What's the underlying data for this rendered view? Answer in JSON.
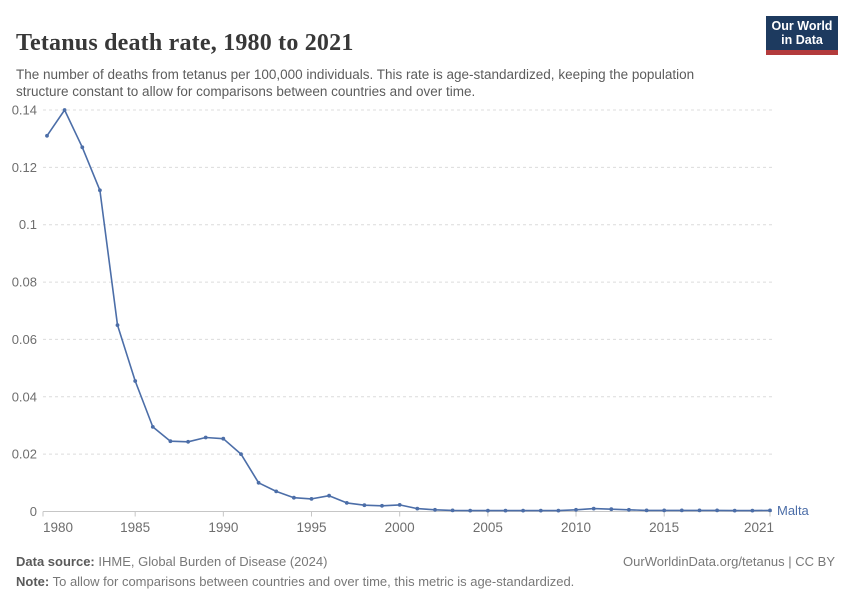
{
  "header": {
    "title": "Tetanus death rate, 1980 to 2021",
    "subtitle": "The number of deaths from tetanus per 100,000 individuals. This rate is age-standardized, keeping the population structure constant to allow for comparisons between countries and over time.",
    "logo": {
      "line1": "Our World",
      "line2": "in Data"
    }
  },
  "chart_data": {
    "type": "line",
    "title": "Tetanus death rate, 1980 to 2021",
    "xlabel": "",
    "ylabel": "",
    "xlim": [
      1980,
      2021
    ],
    "ylim": [
      0,
      0.14
    ],
    "grid": "horizontal-dashed",
    "legend_position": "end-of-line-label",
    "x_tick_labels": [
      "1980",
      "1985",
      "1990",
      "1995",
      "2000",
      "2005",
      "2010",
      "2015",
      "2021"
    ],
    "y_tick_labels": [
      "0",
      "0.02",
      "0.04",
      "0.06",
      "0.08",
      "0.1",
      "0.12",
      "0.14"
    ],
    "x": [
      1980,
      1981,
      1982,
      1983,
      1984,
      1985,
      1986,
      1987,
      1988,
      1989,
      1990,
      1991,
      1992,
      1993,
      1994,
      1995,
      1996,
      1997,
      1998,
      1999,
      2000,
      2001,
      2002,
      2003,
      2004,
      2005,
      2006,
      2007,
      2008,
      2009,
      2010,
      2011,
      2012,
      2013,
      2014,
      2015,
      2016,
      2017,
      2018,
      2019,
      2020,
      2021
    ],
    "series": [
      {
        "name": "Malta",
        "color": "#4c6ea8",
        "values": [
          0.131,
          0.14,
          0.127,
          0.112,
          0.065,
          0.0455,
          0.0295,
          0.0245,
          0.0243,
          0.0258,
          0.0254,
          0.02,
          0.01,
          0.007,
          0.0048,
          0.0044,
          0.0055,
          0.003,
          0.0022,
          0.002,
          0.0023,
          0.001,
          0.0006,
          0.0004,
          0.0003,
          0.0003,
          0.0003,
          0.0003,
          0.0003,
          0.0003,
          0.0006,
          0.001,
          0.0008,
          0.0006,
          0.0004,
          0.0004,
          0.0004,
          0.0004,
          0.0004,
          0.0003,
          0.0003,
          0.0004
        ]
      }
    ],
    "end_label": "Malta"
  },
  "footer": {
    "datasource_label": "Data source:",
    "datasource_value": " IHME, Global Burden of Disease (2024)",
    "rights": "OurWorldinData.org/tetanus | CC BY",
    "note_label": "Note:",
    "note_value": " To allow for comparisons between countries and over time, this metric is age-standardized."
  },
  "colors": {
    "line": "#4c6ea8",
    "grid": "#dcdcdc",
    "axis": "#c6c6c6",
    "tick_text": "#6e6e6e",
    "title_text": "#383838",
    "subtitle_text": "#5c5c5c",
    "logo_bg": "#1d3a5f",
    "logo_stripe": "#b33b3c"
  }
}
